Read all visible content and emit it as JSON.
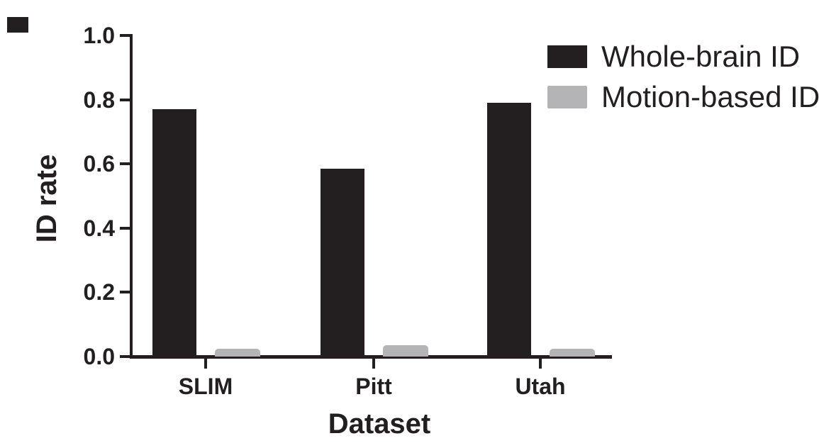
{
  "figure": {
    "background_color": "#ffffff",
    "axis_color": "#231f20"
  },
  "chart_data": {
    "type": "bar",
    "title": "",
    "categories": [
      "SLIM",
      "Pitt",
      "Utah"
    ],
    "series": [
      {
        "name": "Whole-brain ID",
        "color": "#231f20",
        "values": [
          0.77,
          0.585,
          0.79
        ]
      },
      {
        "name": "Motion-based ID",
        "color": "#b4b4b6",
        "values": [
          0.025,
          0.035,
          0.025
        ]
      }
    ],
    "xlabel": "Dataset",
    "ylabel": "ID rate",
    "ylim": [
      0.0,
      1.0
    ],
    "yticks": [
      0.0,
      0.2,
      0.4,
      0.6,
      0.8,
      1.0
    ],
    "ytick_labels": [
      "0.0",
      "0.2",
      "0.4",
      "0.6",
      "0.8",
      "1.0"
    ],
    "grid": false,
    "legend_position": "top-right"
  }
}
